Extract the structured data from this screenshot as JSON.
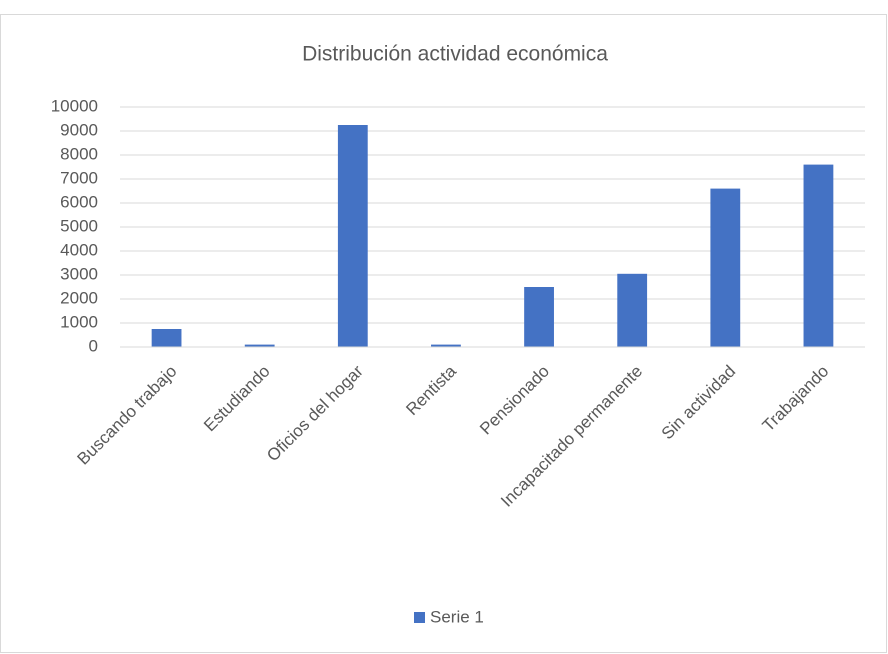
{
  "chart_data": {
    "type": "bar",
    "title": "Distribución  actividad económica",
    "categories": [
      "Buscando trabajo",
      "Estudiando",
      "Oficios del hogar",
      "Rentista",
      "Pensionado",
      "Incapacitado permanente",
      "Sin actividad",
      "Trabajando"
    ],
    "series": [
      {
        "name": "Serie 1",
        "color": "#4472c4",
        "values": [
          750,
          100,
          9250,
          100,
          2500,
          3050,
          6600,
          7600
        ]
      }
    ],
    "ylim": [
      0,
      10000
    ],
    "yticks": [
      0,
      1000,
      2000,
      3000,
      4000,
      5000,
      6000,
      7000,
      8000,
      9000,
      10000
    ],
    "grid": true,
    "legend": "bottom"
  }
}
